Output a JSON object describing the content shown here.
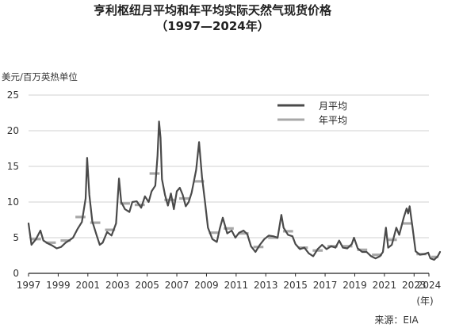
{
  "chart_data": {
    "type": "line",
    "title": "亨利枢纽月平均和年平均实际天然气现货价格",
    "subtitle": "（1997—2024年）",
    "ylabel": "美元/百万英热单位",
    "xlabel": "(年)",
    "source": "来源：EIA",
    "ylim": [
      0,
      25
    ],
    "xlim": [
      1997,
      2024
    ],
    "y_ticks": [
      0,
      5,
      10,
      15,
      20,
      25
    ],
    "x_ticks": [
      1997,
      1999,
      2001,
      2003,
      2005,
      2007,
      2009,
      2011,
      2013,
      2015,
      2017,
      2019,
      2021,
      2023,
      2024
    ],
    "grid": "horizontal",
    "legend_position": "top-right",
    "colors": {
      "monthly": "#4a4a4a",
      "annual": "#a8a8a8",
      "grid": "#d0d0d0"
    },
    "series": [
      {
        "name": "月平均",
        "points": [
          [
            1997.0,
            7.0
          ],
          [
            1997.2,
            4.0
          ],
          [
            1997.5,
            4.8
          ],
          [
            1997.8,
            6.0
          ],
          [
            1998.0,
            4.6
          ],
          [
            1998.3,
            4.2
          ],
          [
            1998.6,
            3.9
          ],
          [
            1998.9,
            3.5
          ],
          [
            1999.2,
            3.7
          ],
          [
            1999.5,
            4.3
          ],
          [
            1999.8,
            4.7
          ],
          [
            2000.0,
            5.0
          ],
          [
            2000.3,
            6.2
          ],
          [
            2000.6,
            7.2
          ],
          [
            2000.85,
            10.5
          ],
          [
            2000.95,
            16.2
          ],
          [
            2001.1,
            11.0
          ],
          [
            2001.3,
            7.3
          ],
          [
            2001.6,
            5.3
          ],
          [
            2001.8,
            4.0
          ],
          [
            2002.0,
            4.3
          ],
          [
            2002.3,
            5.8
          ],
          [
            2002.6,
            5.3
          ],
          [
            2002.9,
            7.0
          ],
          [
            2003.1,
            13.3
          ],
          [
            2003.25,
            10.0
          ],
          [
            2003.5,
            9.0
          ],
          [
            2003.8,
            8.6
          ],
          [
            2004.0,
            10.0
          ],
          [
            2004.3,
            10.1
          ],
          [
            2004.6,
            9.2
          ],
          [
            2004.85,
            10.8
          ],
          [
            2005.1,
            10.0
          ],
          [
            2005.3,
            11.5
          ],
          [
            2005.55,
            12.3
          ],
          [
            2005.7,
            16.5
          ],
          [
            2005.8,
            21.3
          ],
          [
            2005.9,
            19.0
          ],
          [
            2006.0,
            13.2
          ],
          [
            2006.2,
            11.0
          ],
          [
            2006.4,
            9.5
          ],
          [
            2006.6,
            11.2
          ],
          [
            2006.8,
            9.0
          ],
          [
            2007.0,
            11.5
          ],
          [
            2007.2,
            12.0
          ],
          [
            2007.4,
            11.0
          ],
          [
            2007.6,
            9.4
          ],
          [
            2007.8,
            10.0
          ],
          [
            2008.0,
            11.3
          ],
          [
            2008.3,
            14.5
          ],
          [
            2008.5,
            18.4
          ],
          [
            2008.7,
            13.5
          ],
          [
            2008.9,
            10.0
          ],
          [
            2009.1,
            6.4
          ],
          [
            2009.4,
            4.8
          ],
          [
            2009.7,
            4.4
          ],
          [
            2009.9,
            6.3
          ],
          [
            2010.1,
            7.8
          ],
          [
            2010.4,
            5.6
          ],
          [
            2010.7,
            6.0
          ],
          [
            2010.95,
            5.0
          ],
          [
            2011.2,
            5.7
          ],
          [
            2011.5,
            6.0
          ],
          [
            2011.75,
            5.5
          ],
          [
            2012.0,
            3.8
          ],
          [
            2012.3,
            3.0
          ],
          [
            2012.6,
            4.0
          ],
          [
            2012.9,
            4.8
          ],
          [
            2013.2,
            5.3
          ],
          [
            2013.5,
            5.2
          ],
          [
            2013.8,
            5.0
          ],
          [
            2014.05,
            8.2
          ],
          [
            2014.2,
            6.4
          ],
          [
            2014.5,
            5.4
          ],
          [
            2014.8,
            5.2
          ],
          [
            2015.0,
            4.1
          ],
          [
            2015.3,
            3.4
          ],
          [
            2015.6,
            3.6
          ],
          [
            2015.9,
            2.8
          ],
          [
            2016.2,
            2.4
          ],
          [
            2016.5,
            3.4
          ],
          [
            2016.8,
            4.0
          ],
          [
            2017.1,
            3.4
          ],
          [
            2017.4,
            3.8
          ],
          [
            2017.7,
            3.6
          ],
          [
            2017.95,
            4.6
          ],
          [
            2018.2,
            3.6
          ],
          [
            2018.5,
            3.5
          ],
          [
            2018.8,
            4.1
          ],
          [
            2018.95,
            5.0
          ],
          [
            2019.2,
            3.5
          ],
          [
            2019.5,
            3.0
          ],
          [
            2019.8,
            3.0
          ],
          [
            2020.1,
            2.4
          ],
          [
            2020.4,
            2.1
          ],
          [
            2020.7,
            2.4
          ],
          [
            2020.9,
            3.0
          ],
          [
            2021.1,
            6.4
          ],
          [
            2021.25,
            3.6
          ],
          [
            2021.5,
            4.0
          ],
          [
            2021.8,
            6.4
          ],
          [
            2022.0,
            5.4
          ],
          [
            2022.3,
            7.8
          ],
          [
            2022.5,
            9.1
          ],
          [
            2022.6,
            8.4
          ],
          [
            2022.7,
            9.4
          ],
          [
            2022.9,
            6.4
          ],
          [
            2023.1,
            3.1
          ],
          [
            2023.4,
            2.6
          ],
          [
            2023.7,
            2.7
          ],
          [
            2023.95,
            2.9
          ],
          [
            2024.1,
            2.1
          ],
          [
            2024.35,
            1.9
          ],
          [
            2024.6,
            2.4
          ],
          [
            2024.75,
            3.0
          ]
        ]
      },
      {
        "name": "年平均",
        "segments": [
          [
            1997,
            1998,
            4.8
          ],
          [
            1998,
            1999,
            4.3
          ],
          [
            1999,
            2000,
            4.6
          ],
          [
            2000,
            2001,
            7.9
          ],
          [
            2001,
            2002,
            7.1
          ],
          [
            2002,
            2003,
            6.1
          ],
          [
            2003,
            2004,
            9.8
          ],
          [
            2004,
            2005,
            9.6
          ],
          [
            2005,
            2006,
            14.0
          ],
          [
            2006,
            2007,
            10.3
          ],
          [
            2007,
            2008,
            10.5
          ],
          [
            2008,
            2009,
            12.9
          ],
          [
            2009,
            2010,
            5.7
          ],
          [
            2010,
            2011,
            6.3
          ],
          [
            2011,
            2012,
            5.6
          ],
          [
            2012,
            2013,
            3.7
          ],
          [
            2013,
            2014,
            5.0
          ],
          [
            2014,
            2015,
            5.9
          ],
          [
            2015,
            2016,
            3.6
          ],
          [
            2016,
            2017,
            3.2
          ],
          [
            2017,
            2018,
            3.8
          ],
          [
            2018,
            2019,
            3.8
          ],
          [
            2019,
            2020,
            3.3
          ],
          [
            2020,
            2021,
            2.6
          ],
          [
            2021,
            2022,
            4.7
          ],
          [
            2022,
            2023,
            7.0
          ],
          [
            2023,
            2024,
            2.7
          ],
          [
            2024,
            2024.8,
            2.3
          ]
        ]
      }
    ]
  }
}
